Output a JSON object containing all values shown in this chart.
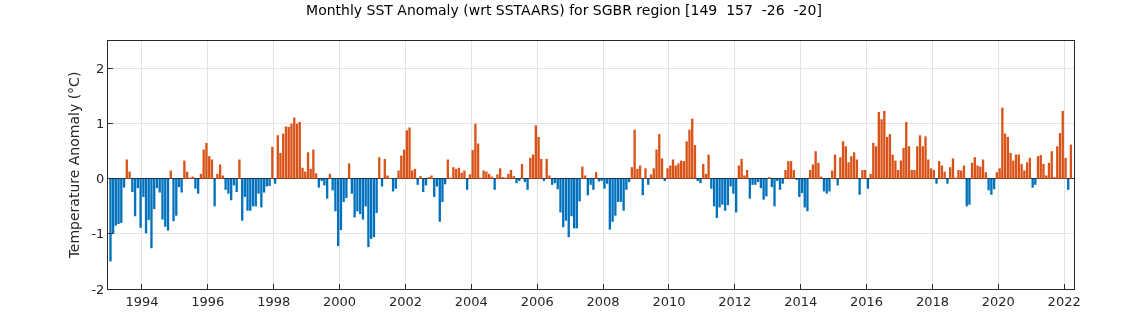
{
  "chart_data": {
    "type": "bar",
    "title": "Monthly SST Anomaly (wrt SSTAARS) for SGBR region [149  157  -26  -20]",
    "ylabel": "Temperature Anomaly (°C)",
    "x": [
      "1993-01",
      "1993-02",
      "1993-03",
      "1993-04",
      "1993-05",
      "1993-06",
      "1993-07",
      "1993-08",
      "1993-09",
      "1993-10",
      "1993-11",
      "1993-12",
      "1994-01",
      "1994-02",
      "1994-03",
      "1994-04",
      "1994-05",
      "1994-06",
      "1994-07",
      "1994-08",
      "1994-09",
      "1994-10",
      "1994-11",
      "1994-12",
      "1995-01",
      "1995-02",
      "1995-03",
      "1995-04",
      "1995-05",
      "1995-06",
      "1995-07",
      "1995-08",
      "1995-09",
      "1995-10",
      "1995-11",
      "1995-12",
      "1996-01",
      "1996-02",
      "1996-03",
      "1996-04",
      "1996-05",
      "1996-06",
      "1996-07",
      "1996-08",
      "1996-09",
      "1996-10",
      "1996-11",
      "1996-12",
      "1997-01",
      "1997-02",
      "1997-03",
      "1997-04",
      "1997-05",
      "1997-06",
      "1997-07",
      "1997-08",
      "1997-09",
      "1997-10",
      "1997-11",
      "1997-12",
      "1998-01",
      "1998-02",
      "1998-03",
      "1998-04",
      "1998-05",
      "1998-06",
      "1998-07",
      "1998-08",
      "1998-09",
      "1998-10",
      "1998-11",
      "1998-12",
      "1999-01",
      "1999-02",
      "1999-03",
      "1999-04",
      "1999-05",
      "1999-06",
      "1999-07",
      "1999-08",
      "1999-09",
      "1999-10",
      "1999-11",
      "1999-12",
      "2000-01",
      "2000-02",
      "2000-03",
      "2000-04",
      "2000-05",
      "2000-06",
      "2000-07",
      "2000-08",
      "2000-09",
      "2000-10",
      "2000-11",
      "2000-12",
      "2001-01",
      "2001-02",
      "2001-03",
      "2001-04",
      "2001-05",
      "2001-06",
      "2001-07",
      "2001-08",
      "2001-09",
      "2001-10",
      "2001-11",
      "2001-12",
      "2002-01",
      "2002-02",
      "2002-03",
      "2002-04",
      "2002-05",
      "2002-06",
      "2002-07",
      "2002-08",
      "2002-09",
      "2002-10",
      "2002-11",
      "2002-12",
      "2003-01",
      "2003-02",
      "2003-03",
      "2003-04",
      "2003-05",
      "2003-06",
      "2003-07",
      "2003-08",
      "2003-09",
      "2003-10",
      "2003-11",
      "2003-12",
      "2004-01",
      "2004-02",
      "2004-03",
      "2004-04",
      "2004-05",
      "2004-06",
      "2004-07",
      "2004-08",
      "2004-09",
      "2004-10",
      "2004-11",
      "2004-12",
      "2005-01",
      "2005-02",
      "2005-03",
      "2005-04",
      "2005-05",
      "2005-06",
      "2005-07",
      "2005-08",
      "2005-09",
      "2005-10",
      "2005-11",
      "2005-12",
      "2006-01",
      "2006-02",
      "2006-03",
      "2006-04",
      "2006-05",
      "2006-06",
      "2006-07",
      "2006-08",
      "2006-09",
      "2006-10",
      "2006-11",
      "2006-12",
      "2007-01",
      "2007-02",
      "2007-03",
      "2007-04",
      "2007-05",
      "2007-06",
      "2007-07",
      "2007-08",
      "2007-09",
      "2007-10",
      "2007-11",
      "2007-12",
      "2008-01",
      "2008-02",
      "2008-03",
      "2008-04",
      "2008-05",
      "2008-06",
      "2008-07",
      "2008-08",
      "2008-09",
      "2008-10",
      "2008-11",
      "2008-12",
      "2009-01",
      "2009-02",
      "2009-03",
      "2009-04",
      "2009-05",
      "2009-06",
      "2009-07",
      "2009-08",
      "2009-09",
      "2009-10",
      "2009-11",
      "2009-12",
      "2010-01",
      "2010-02",
      "2010-03",
      "2010-04",
      "2010-05",
      "2010-06",
      "2010-07",
      "2010-08",
      "2010-09",
      "2010-10",
      "2010-11",
      "2010-12",
      "2011-01",
      "2011-02",
      "2011-03",
      "2011-04",
      "2011-05",
      "2011-06",
      "2011-07",
      "2011-08",
      "2011-09",
      "2011-10",
      "2011-11",
      "2011-12",
      "2012-01",
      "2012-02",
      "2012-03",
      "2012-04",
      "2012-05",
      "2012-06",
      "2012-07",
      "2012-08",
      "2012-09",
      "2012-10",
      "2012-11",
      "2012-12",
      "2013-01",
      "2013-02",
      "2013-03",
      "2013-04",
      "2013-05",
      "2013-06",
      "2013-07",
      "2013-08",
      "2013-09",
      "2013-10",
      "2013-11",
      "2013-12",
      "2014-01",
      "2014-02",
      "2014-03",
      "2014-04",
      "2014-05",
      "2014-06",
      "2014-07",
      "2014-08",
      "2014-09",
      "2014-10",
      "2014-11",
      "2014-12",
      "2015-01",
      "2015-02",
      "2015-03",
      "2015-04",
      "2015-05",
      "2015-06",
      "2015-07",
      "2015-08",
      "2015-09",
      "2015-10",
      "2015-11",
      "2015-12",
      "2016-01",
      "2016-02",
      "2016-03",
      "2016-04",
      "2016-05",
      "2016-06",
      "2016-07",
      "2016-08",
      "2016-09",
      "2016-10",
      "2016-11",
      "2016-12",
      "2017-01",
      "2017-02",
      "2017-03",
      "2017-04",
      "2017-05",
      "2017-06",
      "2017-07",
      "2017-08",
      "2017-09",
      "2017-10",
      "2017-11",
      "2017-12",
      "2018-01",
      "2018-02",
      "2018-03",
      "2018-04",
      "2018-05",
      "2018-06",
      "2018-07",
      "2018-08",
      "2018-09",
      "2018-10",
      "2018-11",
      "2018-12",
      "2019-01",
      "2019-02",
      "2019-03",
      "2019-04",
      "2019-05",
      "2019-06",
      "2019-07",
      "2019-08",
      "2019-09",
      "2019-10",
      "2019-11",
      "2019-12",
      "2020-01",
      "2020-02",
      "2020-03",
      "2020-04",
      "2020-05",
      "2020-06",
      "2020-07",
      "2020-08",
      "2020-09",
      "2020-10",
      "2020-11",
      "2020-12",
      "2021-01",
      "2021-02",
      "2021-03",
      "2021-04",
      "2021-05",
      "2021-06",
      "2021-07",
      "2021-08",
      "2021-09",
      "2021-10",
      "2021-11",
      "2021-12",
      "2022-01",
      "2022-02",
      "2022-03"
    ],
    "values": [
      -1.5,
      -1.0,
      -0.85,
      -0.82,
      -0.8,
      -0.16,
      0.35,
      0.13,
      -0.24,
      -0.68,
      -0.17,
      -0.89,
      -0.33,
      -0.99,
      -0.75,
      -1.26,
      -0.55,
      -0.17,
      -0.25,
      -0.74,
      -0.87,
      -0.94,
      0.15,
      -0.77,
      -0.67,
      -0.15,
      -0.25,
      0.33,
      0.13,
      0.02,
      0.04,
      -0.18,
      -0.27,
      0.09,
      0.53,
      0.65,
      0.41,
      0.35,
      -0.5,
      0.09,
      0.26,
      0.06,
      -0.2,
      -0.27,
      -0.39,
      -0.12,
      -0.24,
      0.35,
      -0.76,
      -0.33,
      -0.58,
      -0.58,
      -0.5,
      -0.5,
      -0.27,
      -0.52,
      -0.25,
      -0.14,
      -0.13,
      0.58,
      -0.09,
      0.79,
      0.47,
      0.82,
      0.95,
      0.94,
      1.0,
      1.11,
      1.0,
      1.03,
      0.2,
      0.13,
      0.48,
      0.18,
      0.53,
      0.1,
      -0.16,
      -0.04,
      -0.12,
      -0.36,
      0.09,
      -0.21,
      -0.59,
      -1.22,
      -0.93,
      -0.42,
      -0.35,
      0.28,
      -0.27,
      -0.7,
      -0.59,
      -0.64,
      -0.74,
      -0.5,
      -1.24,
      -1.09,
      -1.06,
      -0.62,
      0.39,
      -0.14,
      0.36,
      0.06,
      0.01,
      -0.23,
      -0.18,
      0.15,
      0.42,
      0.53,
      0.88,
      0.93,
      0.15,
      0.18,
      -0.11,
      0.05,
      -0.24,
      -0.12,
      0.03,
      0.06,
      -0.33,
      -0.14,
      -0.78,
      -0.42,
      -0.1,
      0.35,
      0.02,
      0.21,
      0.18,
      0.2,
      0.11,
      0.15,
      -0.2,
      0.08,
      0.52,
      1.0,
      0.64,
      0.02,
      0.15,
      0.13,
      0.09,
      0.04,
      -0.2,
      0.08,
      0.19,
      0.03,
      0.02,
      0.09,
      0.16,
      0.05,
      -0.08,
      -0.04,
      0.27,
      -0.06,
      -0.2,
      0.38,
      0.44,
      0.97,
      0.76,
      0.36,
      -0.04,
      0.36,
      0.06,
      -0.11,
      -0.08,
      -0.19,
      -0.61,
      -0.88,
      -0.76,
      -1.06,
      -0.68,
      -0.9,
      -0.9,
      -0.41,
      0.22,
      0.06,
      -0.3,
      -0.11,
      -0.2,
      0.12,
      -0.05,
      -0.04,
      -0.18,
      -0.09,
      -0.92,
      -0.78,
      -0.67,
      -0.42,
      -0.42,
      -0.58,
      -0.2,
      -0.06,
      0.21,
      0.89,
      0.18,
      0.24,
      -0.3,
      0.19,
      -0.11,
      0.08,
      0.19,
      0.53,
      0.81,
      0.37,
      -0.04,
      0.19,
      0.24,
      0.35,
      0.24,
      0.28,
      0.33,
      0.32,
      0.68,
      0.89,
      1.09,
      0.61,
      -0.04,
      -0.08,
      0.27,
      0.09,
      0.44,
      -0.18,
      -0.5,
      -0.71,
      -0.52,
      -0.47,
      -0.58,
      -0.48,
      -0.14,
      -0.27,
      -0.61,
      0.24,
      0.36,
      0.06,
      0.16,
      -0.36,
      -0.11,
      -0.11,
      -0.06,
      -0.17,
      -0.38,
      -0.32,
      0.03,
      -0.15,
      -0.5,
      -0.04,
      -0.2,
      -0.09,
      0.16,
      0.32,
      0.32,
      0.16,
      -0.02,
      -0.33,
      -0.26,
      -0.52,
      -0.59,
      0.16,
      0.26,
      0.5,
      0.29,
      0.04,
      -0.23,
      -0.27,
      -0.23,
      0.15,
      0.44,
      -0.12,
      0.39,
      0.68,
      0.59,
      0.3,
      0.41,
      0.48,
      0.35,
      -0.29,
      0.16,
      0.16,
      -0.18,
      0.09,
      0.65,
      0.59,
      1.21,
      1.08,
      1.23,
      0.76,
      0.81,
      0.44,
      0.33,
      0.16,
      0.33,
      0.56,
      1.03,
      0.59,
      0.16,
      0.16,
      0.59,
      0.79,
      0.59,
      0.77,
      0.35,
      0.19,
      0.16,
      -0.09,
      0.32,
      0.24,
      0.13,
      -0.09,
      0.21,
      0.37,
      0.02,
      0.16,
      0.15,
      0.24,
      -0.5,
      -0.47,
      0.29,
      0.39,
      0.24,
      0.22,
      0.35,
      0.12,
      -0.21,
      -0.29,
      -0.19,
      0.12,
      0.19,
      1.29,
      0.82,
      0.76,
      0.47,
      0.33,
      0.44,
      0.44,
      0.27,
      0.15,
      0.3,
      0.38,
      -0.16,
      -0.11,
      0.41,
      0.43,
      0.27,
      0.06,
      0.29,
      0.5,
      0.03,
      0.59,
      0.83,
      1.23,
      0.38,
      -0.2,
      0.62
    ],
    "colors": [
      "#0072bd",
      "#0072bd",
      "#0072bd",
      "#0072bd",
      "#0072bd",
      "#0072bd",
      "#d95319",
      "#d95319",
      "#0072bd",
      "#0072bd",
      "#0072bd",
      "#0072bd",
      "#0072bd",
      "#0072bd",
      "#0072bd",
      "#0072bd",
      "#0072bd",
      "#0072bd",
      "#0072bd",
      "#0072bd",
      "#0072bd",
      "#0072bd",
      "#d95319",
      "#0072bd",
      "#0072bd",
      "#0072bd",
      "#0072bd",
      "#d95319",
      "#d95319",
      "#d95319",
      "#d95319",
      "#0072bd",
      "#0072bd",
      "#d95319",
      "#d95319",
      "#d95319",
      "#d95319",
      "#d95319",
      "#0072bd",
      "#d95319",
      "#d95319",
      "#d95319",
      "#0072bd",
      "#0072bd",
      "#0072bd",
      "#0072bd",
      "#0072bd",
      "#d95319",
      "#0072bd",
      "#0072bd",
      "#0072bd",
      "#0072bd",
      "#0072bd",
      "#0072bd",
      "#0072bd",
      "#0072bd",
      "#0072bd",
      "#0072bd",
      "#0072bd",
      "#d95319",
      "#0072bd",
      "#d95319",
      "#d95319",
      "#d95319",
      "#d95319",
      "#d95319",
      "#d95319",
      "#d95319",
      "#d95319",
      "#d95319",
      "#d95319",
      "#d95319",
      "#d95319",
      "#d95319",
      "#d95319",
      "#d95319",
      "#0072bd",
      "#0072bd",
      "#0072bd",
      "#0072bd",
      "#d95319",
      "#0072bd",
      "#0072bd",
      "#0072bd",
      "#0072bd",
      "#0072bd",
      "#0072bd",
      "#d95319",
      "#0072bd",
      "#0072bd",
      "#0072bd",
      "#0072bd",
      "#0072bd",
      "#0072bd",
      "#0072bd",
      "#0072bd",
      "#0072bd",
      "#0072bd",
      "#d95319",
      "#0072bd",
      "#d95319",
      "#d95319",
      "#d95319",
      "#0072bd",
      "#0072bd",
      "#d95319",
      "#d95319",
      "#d95319",
      "#d95319",
      "#d95319",
      "#d95319",
      "#d95319",
      "#0072bd",
      "#d95319",
      "#0072bd",
      "#0072bd",
      "#d95319",
      "#d95319",
      "#0072bd",
      "#0072bd",
      "#0072bd",
      "#0072bd",
      "#0072bd",
      "#d95319",
      "#d95319",
      "#d95319",
      "#d95319",
      "#d95319",
      "#d95319",
      "#d95319",
      "#0072bd",
      "#d95319",
      "#d95319",
      "#d95319",
      "#d95319",
      "#d95319",
      "#d95319",
      "#d95319",
      "#d95319",
      "#d95319",
      "#0072bd",
      "#d95319",
      "#d95319",
      "#d95319",
      "#d95319",
      "#d95319",
      "#d95319",
      "#d95319",
      "#0072bd",
      "#0072bd",
      "#d95319",
      "#0072bd",
      "#0072bd",
      "#d95319",
      "#d95319",
      "#d95319",
      "#d95319",
      "#d95319",
      "#0072bd",
      "#d95319",
      "#d95319",
      "#0072bd",
      "#0072bd",
      "#0072bd",
      "#0072bd",
      "#0072bd",
      "#0072bd",
      "#0072bd",
      "#0072bd",
      "#0072bd",
      "#0072bd",
      "#0072bd",
      "#d95319",
      "#d95319",
      "#0072bd",
      "#0072bd",
      "#0072bd",
      "#d95319",
      "#0072bd",
      "#0072bd",
      "#0072bd",
      "#0072bd",
      "#0072bd",
      "#0072bd",
      "#0072bd",
      "#0072bd",
      "#0072bd",
      "#0072bd",
      "#0072bd",
      "#0072bd",
      "#d95319",
      "#d95319",
      "#d95319",
      "#d95319",
      "#0072bd",
      "#d95319",
      "#0072bd",
      "#d95319",
      "#d95319",
      "#d95319",
      "#d95319",
      "#d95319",
      "#0072bd",
      "#d95319",
      "#d95319",
      "#d95319",
      "#d95319",
      "#d95319",
      "#d95319",
      "#d95319",
      "#d95319",
      "#d95319",
      "#d95319",
      "#d95319",
      "#0072bd",
      "#0072bd",
      "#d95319",
      "#d95319",
      "#d95319",
      "#0072bd",
      "#0072bd",
      "#0072bd",
      "#0072bd",
      "#0072bd",
      "#0072bd",
      "#0072bd",
      "#0072bd",
      "#0072bd",
      "#0072bd",
      "#d95319",
      "#d95319",
      "#d95319",
      "#d95319",
      "#0072bd",
      "#0072bd",
      "#0072bd",
      "#0072bd",
      "#0072bd",
      "#0072bd",
      "#0072bd",
      "#d95319",
      "#0072bd",
      "#0072bd",
      "#0072bd",
      "#0072bd",
      "#0072bd",
      "#d95319",
      "#d95319",
      "#d95319",
      "#d95319",
      "#0072bd",
      "#0072bd",
      "#0072bd",
      "#0072bd",
      "#0072bd",
      "#d95319",
      "#d95319",
      "#d95319",
      "#d95319",
      "#d95319",
      "#0072bd",
      "#0072bd",
      "#0072bd",
      "#d95319",
      "#d95319",
      "#0072bd",
      "#d95319",
      "#d95319",
      "#d95319",
      "#d95319",
      "#d95319",
      "#d95319",
      "#d95319",
      "#0072bd",
      "#d95319",
      "#d95319",
      "#0072bd",
      "#d95319",
      "#d95319",
      "#d95319",
      "#d95319",
      "#d95319",
      "#d95319",
      "#d95319",
      "#d95319",
      "#d95319",
      "#d95319",
      "#d95319",
      "#d95319",
      "#d95319",
      "#d95319",
      "#d95319",
      "#d95319",
      "#d95319",
      "#d95319",
      "#d95319",
      "#d95319",
      "#d95319",
      "#d95319",
      "#d95319",
      "#d95319",
      "#0072bd",
      "#d95319",
      "#d95319",
      "#d95319",
      "#0072bd",
      "#d95319",
      "#d95319",
      "#d95319",
      "#d95319",
      "#d95319",
      "#d95319",
      "#0072bd",
      "#0072bd",
      "#d95319",
      "#d95319",
      "#d95319",
      "#d95319",
      "#d95319",
      "#d95319",
      "#0072bd",
      "#0072bd",
      "#0072bd",
      "#d95319",
      "#d95319",
      "#d95319",
      "#d95319",
      "#d95319",
      "#d95319",
      "#d95319",
      "#d95319",
      "#d95319",
      "#d95319",
      "#d95319",
      "#d95319",
      "#d95319",
      "#0072bd",
      "#0072bd",
      "#d95319",
      "#d95319",
      "#d95319",
      "#d95319",
      "#d95319",
      "#d95319",
      "#d95319",
      "#d95319",
      "#d95319",
      "#d95319",
      "#d95319",
      "#0072bd",
      "#d95319"
    ],
    "xlim": [
      "1992-12-20",
      "2022-04-20"
    ],
    "xticks": [
      "1994",
      "1996",
      "1998",
      "2000",
      "2002",
      "2004",
      "2006",
      "2008",
      "2010",
      "2012",
      "2014",
      "2016",
      "2018",
      "2020",
      "2022"
    ],
    "ylim": [
      -2,
      2.5
    ],
    "yticks": [
      -2,
      -1,
      0,
      1,
      2
    ],
    "grid": true,
    "legend": false
  }
}
